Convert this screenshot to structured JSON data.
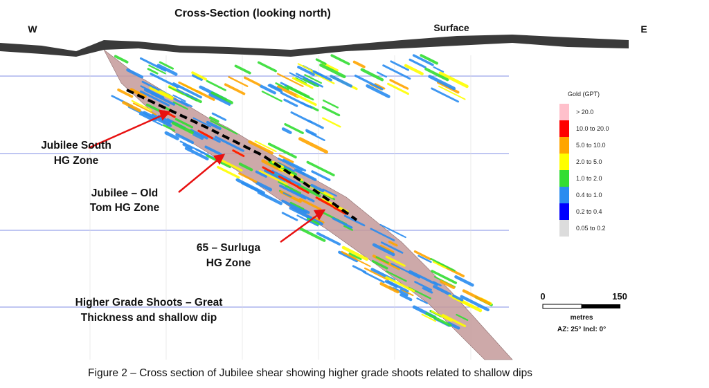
{
  "header": {
    "title": "Cross-Section (looking north)",
    "west": "W",
    "east": "E",
    "surface": "Surface"
  },
  "annotations": [
    {
      "lines": [
        "Jubilee South",
        "HG Zone"
      ]
    },
    {
      "lines": [
        "Jubilee – Old",
        "Tom HG Zone"
      ]
    },
    {
      "lines": [
        "65 – Surluga",
        "HG Zone"
      ]
    },
    {
      "lines": [
        "Higher Grade Shoots – Great",
        "Thickness and shallow dip"
      ]
    }
  ],
  "legend": {
    "title": "Gold (GPT)",
    "entries": [
      {
        "label": "> 20.0",
        "color": "#ffc0cb"
      },
      {
        "label": "10.0 to 20.0",
        "color": "#ff0000"
      },
      {
        "label": "5.0 to 10.0",
        "color": "#ffa500"
      },
      {
        "label": "2.0 to 5.0",
        "color": "#ffff00"
      },
      {
        "label": "1.0 to 2.0",
        "color": "#33dd33"
      },
      {
        "label": "0.4 to 1.0",
        "color": "#2a8cf0"
      },
      {
        "label": "0.2 to 0.4",
        "color": "#0000ff"
      },
      {
        "label": "0.05 to 0.2",
        "color": "#dcdcdc"
      }
    ]
  },
  "scale": {
    "start": "0",
    "end": "150",
    "unit": "metres",
    "orientation": "AZ: 25°  Incl: 0°"
  },
  "caption": "Figure  2 – Cross section of Jubilee shear showing higher grade shoots related to shallow dips"
}
